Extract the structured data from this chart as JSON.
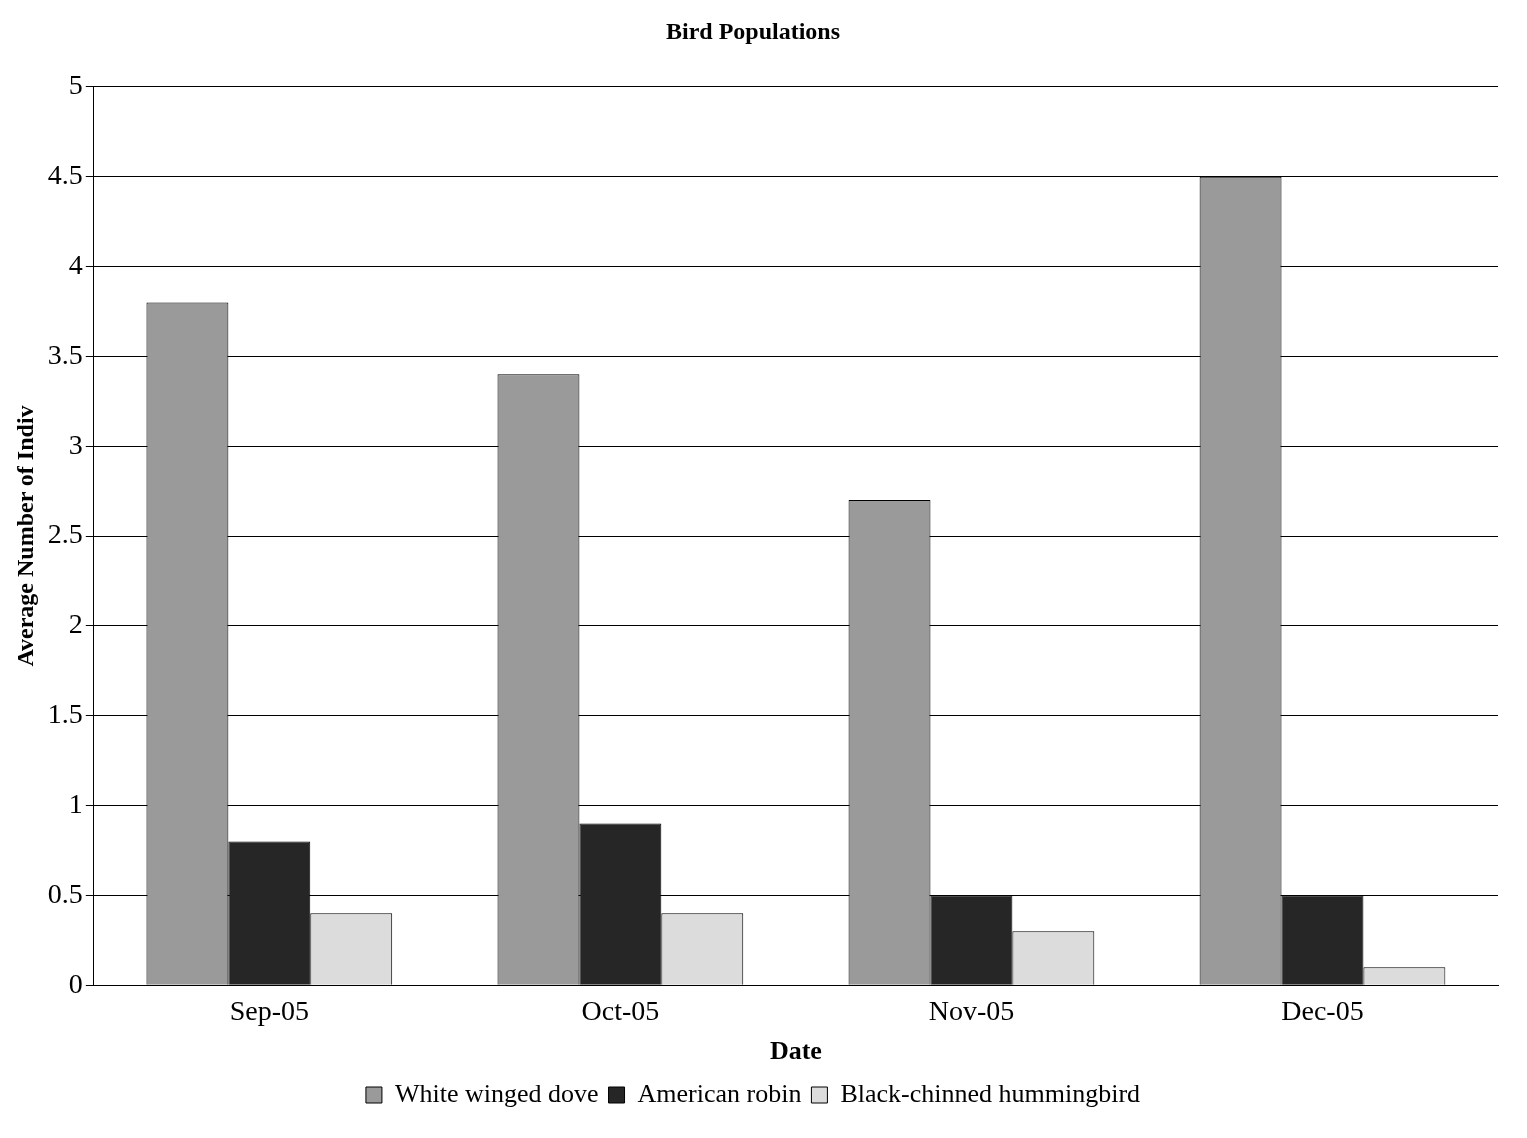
{
  "chart_data": {
    "type": "bar",
    "title": "Bird Populations",
    "xlabel": "Date",
    "ylabel": "Average Number of Indiv",
    "categories": [
      "Sep-05",
      "Oct-05",
      "Nov-05",
      "Dec-05"
    ],
    "series": [
      {
        "name": "White winged dove",
        "color": "#9a9a9a",
        "values": [
          3.8,
          3.4,
          2.7,
          4.5
        ]
      },
      {
        "name": "American robin",
        "color": "#262626",
        "values": [
          0.8,
          0.9,
          0.5,
          0.5
        ]
      },
      {
        "name": "Black-chinned hummingbird",
        "color": "#dcdcdc",
        "values": [
          0.4,
          0.4,
          0.3,
          0.1
        ]
      }
    ],
    "ylim": [
      0,
      5
    ],
    "yticks": [
      0,
      0.5,
      1,
      1.5,
      2,
      2.5,
      3,
      3.5,
      4,
      4.5,
      5
    ],
    "grid": "y",
    "legend": "bottom"
  }
}
